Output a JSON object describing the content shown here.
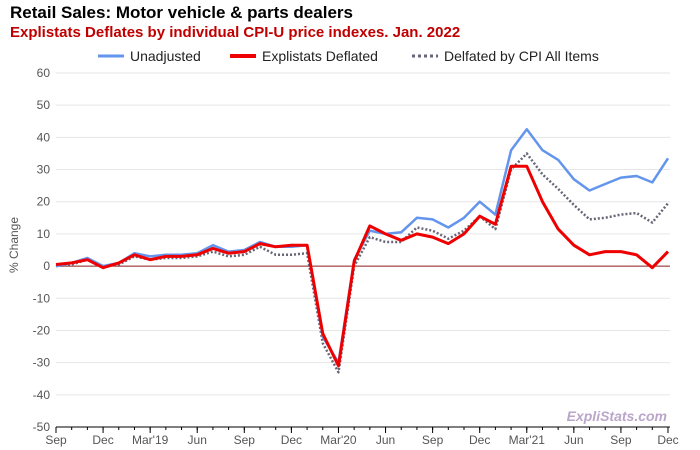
{
  "colors": {
    "unadjusted": "#6495ED",
    "deflated": "#EE0000",
    "cpi": "#666677",
    "zero_line": "#8B1A1A",
    "subtitle": "#C00000",
    "grid": "#E6E6E6"
  },
  "watermark": "ExpliStats.com",
  "chart_data": {
    "type": "line",
    "title": "Retail Sales: Motor vehicle & parts dealers",
    "subtitle": "Explistats Deflates by individual CPI-U price indexes. Jan. 2022",
    "xlabel": "",
    "ylabel": "% Change",
    "ylim": [
      -50,
      60
    ],
    "yticks": [
      60,
      50,
      40,
      30,
      20,
      10,
      0,
      -10,
      -20,
      -30,
      -40,
      -50
    ],
    "grid": true,
    "legend_position": "top",
    "x_tick_labels": [
      {
        "i": 0,
        "label": "Sep"
      },
      {
        "i": 3,
        "label": "Dec"
      },
      {
        "i": 6,
        "label": "Mar'19"
      },
      {
        "i": 9,
        "label": "Jun"
      },
      {
        "i": 12,
        "label": "Sep"
      },
      {
        "i": 15,
        "label": "Dec"
      },
      {
        "i": 18,
        "label": "Mar'20"
      },
      {
        "i": 21,
        "label": "Jun"
      },
      {
        "i": 24,
        "label": "Sep"
      },
      {
        "i": 27,
        "label": "Dec"
      },
      {
        "i": 30,
        "label": "Mar'21"
      },
      {
        "i": 33,
        "label": "Jun"
      },
      {
        "i": 36,
        "label": "Sep"
      },
      {
        "i": 39,
        "label": "Dec"
      }
    ],
    "series": [
      {
        "name": "Unadjusted",
        "style": "solid",
        "values": [
          0,
          1,
          2.5,
          0,
          1,
          4,
          3,
          3.5,
          3.5,
          4,
          6.5,
          4.5,
          5,
          7.5,
          6,
          6,
          6.5,
          -22,
          -30,
          2,
          11,
          10,
          10.5,
          15,
          14.5,
          12,
          15,
          20,
          16,
          36,
          42.5,
          36,
          33,
          27,
          23.5,
          25.5,
          27.5,
          28,
          26,
          33.5
        ]
      },
      {
        "name": "Explistats Deflated",
        "style": "solid",
        "values": [
          0.5,
          1,
          2,
          -0.5,
          1,
          3.5,
          2,
          3,
          3,
          3.5,
          5.5,
          4,
          4.5,
          7,
          6,
          6.5,
          6.5,
          -21,
          -31,
          1.5,
          12.5,
          10,
          8,
          10,
          9,
          7,
          10,
          15.5,
          13,
          31,
          31,
          20,
          11.5,
          6.5,
          3.5,
          4.5,
          4.5,
          3.5,
          -0.5,
          4.5
        ]
      },
      {
        "name": "Delfated by CPI All Items",
        "style": "dotted",
        "values": [
          0,
          0.5,
          2,
          0,
          0.5,
          3,
          2,
          2.5,
          2.5,
          3,
          4.5,
          3,
          3.5,
          6,
          3.5,
          3.5,
          4,
          -24,
          -33,
          0,
          9,
          7.5,
          7.5,
          12,
          11,
          8.5,
          11,
          15.5,
          11.5,
          30,
          35,
          28.5,
          24,
          19,
          14.5,
          15,
          16,
          16.5,
          13.5,
          19.5
        ]
      }
    ]
  }
}
